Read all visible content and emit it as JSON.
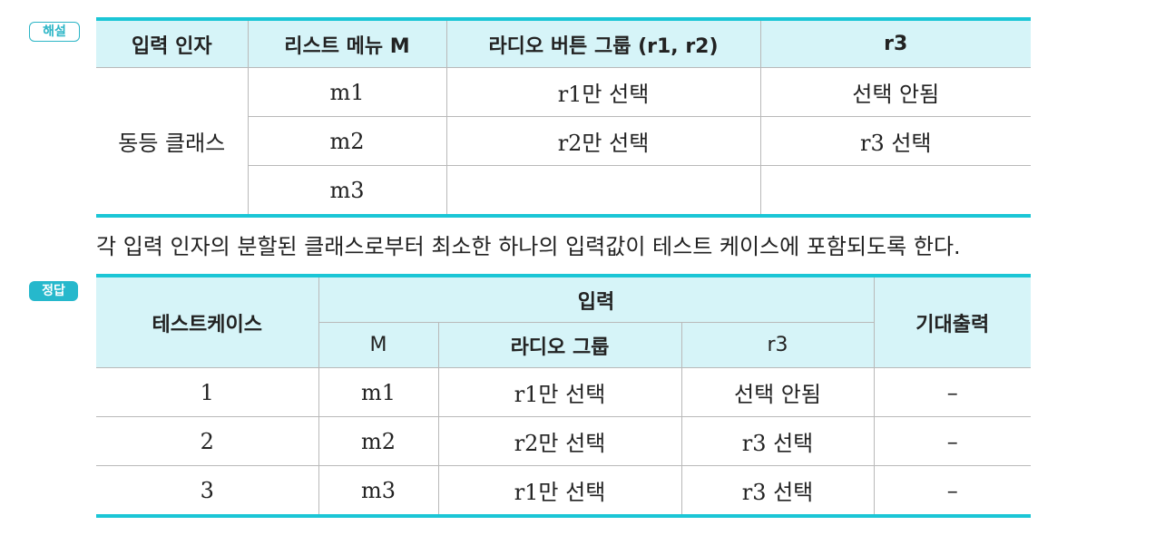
{
  "badges": {
    "explanation": "해설",
    "answer": "정답"
  },
  "table1": {
    "headers": [
      "입력 인자",
      "리스트 메뉴 M",
      "라디오 버튼 그룹 (r1, r2)",
      "r3"
    ],
    "group_label": "동등 클래스",
    "rows": [
      [
        "m1",
        "r1만 선택",
        "선택 안됨"
      ],
      [
        "m2",
        "r2만 선택",
        "r3 선택"
      ],
      [
        "m3",
        "",
        ""
      ]
    ]
  },
  "note": "각 입력 인자의 분할된 클래스로부터 최소한 하나의 입력값이 테스트 케이스에 포함되도록 한다.",
  "table2": {
    "headers": {
      "testcase": "테스트케이스",
      "input": "입력",
      "expected": "기대출력",
      "sub": [
        "M",
        "라디오 그룹",
        "r3"
      ]
    },
    "rows": [
      [
        "1",
        "m1",
        "r1만 선택",
        "선택 안됨",
        "–"
      ],
      [
        "2",
        "m2",
        "r2만 선택",
        "r3 선택",
        "–"
      ],
      [
        "3",
        "m3",
        "r1만 선택",
        "r3 선택",
        "–"
      ]
    ]
  },
  "colors": {
    "accent": "#1bc6d6",
    "header_bg": "#d6f4f8"
  }
}
